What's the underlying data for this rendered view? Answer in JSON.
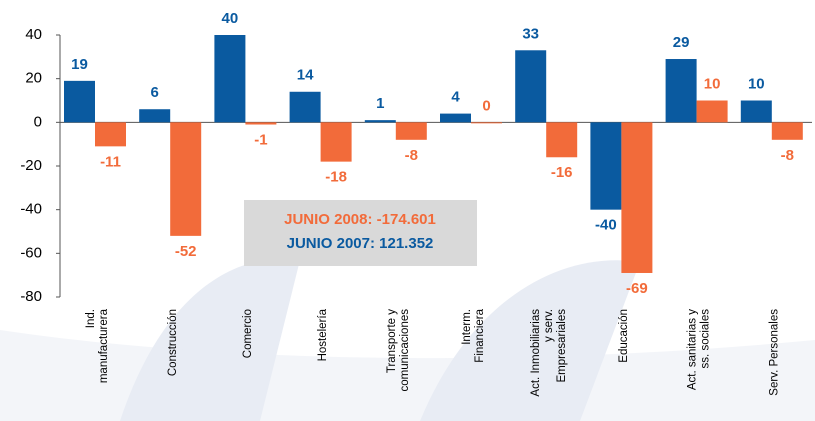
{
  "chart_data": {
    "type": "bar",
    "categories": [
      "Ind.\nmanufacturera",
      "Construcción",
      "Comercio",
      "Hostelería",
      "Transporte y\ncomunicaciones",
      "Interm.\nFinanciera",
      "Act. Inmobiliarias\ny serv.\nEmpresariales",
      "Educación",
      "Act. sanitarias y\nss. sociales",
      "Serv. Personales"
    ],
    "series": [
      {
        "name": "JUNIO 2007: 121.352",
        "color": "#0a5aa0",
        "values": [
          19,
          6,
          40,
          14,
          1,
          4,
          33,
          -40,
          29,
          10
        ]
      },
      {
        "name": "JUNIO 2008: -174.601",
        "color": "#f26b3a",
        "values": [
          -11,
          -52,
          -1,
          -18,
          -8,
          0,
          -16,
          -69,
          10,
          -8
        ]
      }
    ],
    "ylim": [
      -80,
      40
    ],
    "yticks": [
      -80,
      -60,
      -40,
      -20,
      0,
      20,
      40
    ],
    "grid": false
  }
}
